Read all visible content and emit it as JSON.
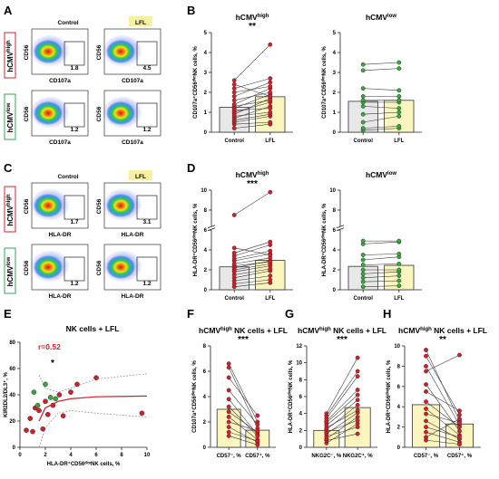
{
  "figure": {
    "panel_letters": [
      "A",
      "B",
      "C",
      "D",
      "E",
      "F",
      "G",
      "H"
    ],
    "colors": {
      "control_bar": "#e8e8e8",
      "lfl_bar": "#fbf6c0",
      "high_point": "#d0202a",
      "low_point": "#3aa53a",
      "gate_high_border": "#d9232a",
      "gate_low_border": "#2fa84f",
      "lfl_tag": "#f6f0a0",
      "r_text": "#d0202a"
    }
  },
  "flow": {
    "A": {
      "col_headers": [
        "Control",
        "LFL"
      ],
      "rows": [
        {
          "group": "hCMV",
          "sup": "high",
          "border": "red",
          "ylabel": "CD56",
          "xlabel": "CD107a",
          "values": [
            "1.8",
            "4.5"
          ]
        },
        {
          "group": "hCMV",
          "sup": "low",
          "border": "green",
          "ylabel": "CD56",
          "xlabel": "CD107a",
          "values": [
            "1.2",
            "1.2"
          ]
        }
      ]
    },
    "C": {
      "col_headers": [
        "Control",
        "LFL"
      ],
      "rows": [
        {
          "group": "hCMV",
          "sup": "high",
          "border": "red",
          "ylabel": "CD56",
          "xlabel": "HLA-DR",
          "values": [
            "1.7",
            "3.1"
          ]
        },
        {
          "group": "hCMV",
          "sup": "low",
          "border": "green",
          "ylabel": "CD56",
          "xlabel": "HLA-DR",
          "values": [
            "1.2",
            "1.2"
          ]
        }
      ]
    }
  },
  "chart_data": [
    {
      "panel": "B",
      "type": "bar",
      "title": "hCMV",
      "title_sup": "high",
      "ylabel": "CD107a⁺CD56ᵈⁱᵐNK cells, %",
      "categories": [
        "Control",
        "LFL"
      ],
      "ylim": [
        0,
        5
      ],
      "yticks": [
        0,
        1,
        2,
        3,
        4,
        5
      ],
      "bar_means": [
        1.25,
        1.78
      ],
      "pairs": [
        [
          0.2,
          0.4
        ],
        [
          0.4,
          0.5
        ],
        [
          0.5,
          0.8
        ],
        [
          0.6,
          0.9
        ],
        [
          0.7,
          1.3
        ],
        [
          0.8,
          1.0
        ],
        [
          0.9,
          1.7
        ],
        [
          1.0,
          1.5
        ],
        [
          1.1,
          1.2
        ],
        [
          1.2,
          1.9
        ],
        [
          1.3,
          1.6
        ],
        [
          1.4,
          2.2
        ],
        [
          1.6,
          2.0
        ],
        [
          1.8,
          2.5
        ],
        [
          2.0,
          2.3
        ],
        [
          2.2,
          2.7
        ],
        [
          2.4,
          1.8
        ],
        [
          2.6,
          4.4
        ]
      ],
      "point_color": "#d0202a",
      "significance": "**"
    },
    {
      "panel": "B",
      "type": "bar",
      "title": "hCMV",
      "title_sup": "low",
      "ylabel": "CD107a⁺CD56ᵈⁱᵐNK cells, %",
      "categories": [
        "Control",
        "LFL"
      ],
      "ylim": [
        0,
        5
      ],
      "yticks": [
        0,
        1,
        2,
        3,
        4,
        5
      ],
      "bar_means": [
        1.55,
        1.6
      ],
      "pairs": [
        [
          0.1,
          0.2
        ],
        [
          0.2,
          0.3
        ],
        [
          0.5,
          0.8
        ],
        [
          0.9,
          1.0
        ],
        [
          1.3,
          1.2
        ],
        [
          1.5,
          1.5
        ],
        [
          1.6,
          1.6
        ],
        [
          1.8,
          1.8
        ],
        [
          2.2,
          2.1
        ],
        [
          3.1,
          3.2
        ],
        [
          3.4,
          3.5
        ]
      ],
      "point_color": "#3aa53a",
      "significance": ""
    },
    {
      "panel": "D",
      "type": "bar",
      "title": "hCMV",
      "title_sup": "high",
      "ylabel": "HLA-DR⁺CD56ᵈⁱᵐNK cells, %",
      "categories": [
        "Control",
        "LFL"
      ],
      "ylim": [
        0,
        10
      ],
      "yticks": [
        0,
        2,
        4,
        6,
        8,
        10
      ],
      "axis_break": true,
      "bar_means": [
        2.3,
        2.95
      ],
      "pairs": [
        [
          0.3,
          0.7
        ],
        [
          0.6,
          1.0
        ],
        [
          0.9,
          1.4
        ],
        [
          1.2,
          1.9
        ],
        [
          1.5,
          2.1
        ],
        [
          1.8,
          2.4
        ],
        [
          2.0,
          2.6
        ],
        [
          2.2,
          2.9
        ],
        [
          2.4,
          2.8
        ],
        [
          2.6,
          3.2
        ],
        [
          2.9,
          3.6
        ],
        [
          3.1,
          3.9
        ],
        [
          3.4,
          4.5
        ],
        [
          3.7,
          4.8
        ],
        [
          4.2,
          3.5
        ],
        [
          7.5,
          9.8
        ]
      ],
      "point_color": "#d0202a",
      "significance": "***"
    },
    {
      "panel": "D",
      "type": "bar",
      "title": "hCMV",
      "title_sup": "low",
      "ylabel": "HLA-DR⁺CD56ᵈⁱᵐNK cells, %",
      "categories": [
        "Control",
        "LFL"
      ],
      "ylim": [
        0,
        10
      ],
      "yticks": [
        0,
        2,
        4,
        6,
        8,
        10
      ],
      "axis_break": true,
      "bar_means": [
        2.35,
        2.45
      ],
      "pairs": [
        [
          0.3,
          0.4
        ],
        [
          0.8,
          0.9
        ],
        [
          1.2,
          1.4
        ],
        [
          1.6,
          1.8
        ],
        [
          2.0,
          2.0
        ],
        [
          2.5,
          2.6
        ],
        [
          3.0,
          3.3
        ],
        [
          3.5,
          3.6
        ],
        [
          4.6,
          4.8
        ],
        [
          4.9,
          4.9
        ]
      ],
      "point_color": "#3aa53a",
      "significance": ""
    },
    {
      "panel": "E",
      "type": "scatter",
      "title": "NK cells + LFL",
      "xlabel": "HLA-DR⁺CD56ᵈⁱᵐNK cells, %",
      "ylabel": "KIR2DL2/DL3⁺, %",
      "xlim": [
        0,
        10
      ],
      "ylim": [
        0,
        80
      ],
      "xticks": [
        0,
        2,
        4,
        6,
        8,
        10
      ],
      "yticks": [
        0,
        20,
        40,
        60,
        80
      ],
      "annotation": "r=0.52",
      "significance": "*",
      "points_high": [
        [
          0.5,
          13
        ],
        [
          0.8,
          22
        ],
        [
          1.0,
          12
        ],
        [
          1.2,
          30
        ],
        [
          1.5,
          28
        ],
        [
          1.8,
          14
        ],
        [
          2.0,
          35
        ],
        [
          2.2,
          25
        ],
        [
          2.6,
          32
        ],
        [
          3.1,
          40
        ],
        [
          3.4,
          24
        ],
        [
          4.0,
          42
        ],
        [
          4.5,
          48
        ],
        [
          6.0,
          53
        ],
        [
          9.6,
          26
        ]
      ],
      "points_low": [
        [
          1.1,
          42
        ],
        [
          1.4,
          32
        ],
        [
          2.0,
          48
        ],
        [
          2.4,
          38
        ],
        [
          2.8,
          37
        ]
      ],
      "fit_curve": [
        [
          1.5,
          20
        ],
        [
          2,
          30
        ],
        [
          3,
          35
        ],
        [
          4,
          37
        ],
        [
          6,
          38.5
        ],
        [
          10,
          39
        ]
      ],
      "ci_upper": [
        [
          1.5,
          55
        ],
        [
          2,
          45
        ],
        [
          3,
          42
        ],
        [
          4,
          45
        ],
        [
          6,
          52
        ],
        [
          10,
          56
        ]
      ],
      "ci_lower": [
        [
          1.5,
          0
        ],
        [
          2,
          15
        ],
        [
          3,
          26
        ],
        [
          4,
          28
        ],
        [
          6,
          26
        ],
        [
          10,
          23
        ]
      ]
    },
    {
      "panel": "F",
      "type": "bar",
      "title": "hCMV",
      "title_sup": "high",
      "title_rest": " NK cells + LFL",
      "ylabel": "CD107a⁺CD56ᵈⁱᵐNK cells, %",
      "categories": [
        "CD57⁻, %",
        "CD57⁺, %"
      ],
      "ylim": [
        0,
        8
      ],
      "yticks": [
        0,
        2,
        4,
        6,
        8
      ],
      "bar_means": [
        3.0,
        1.35
      ],
      "pairs": [
        [
          6.6,
          2.0
        ],
        [
          6.3,
          1.5
        ],
        [
          5.5,
          2.5
        ],
        [
          4.5,
          1.8
        ],
        [
          3.8,
          1.0
        ],
        [
          3.2,
          0.9
        ],
        [
          2.8,
          1.2
        ],
        [
          2.4,
          0.6
        ],
        [
          2.0,
          1.3
        ],
        [
          1.6,
          0.4
        ],
        [
          1.2,
          0.5
        ],
        [
          0.9,
          0.2
        ]
      ],
      "point_color": "#d0202a",
      "significance": "***"
    },
    {
      "panel": "G",
      "type": "bar",
      "title": "hCMV",
      "title_sup": "high",
      "title_rest": " NK cells + LFL",
      "ylabel": "HLA-DR⁺CD56ᵈⁱᵐNK cells, %",
      "categories": [
        "NKG2C⁻, %",
        "NKG2C⁺, %"
      ],
      "ylim": [
        0,
        12
      ],
      "yticks": [
        0,
        2,
        4,
        6,
        8,
        10,
        12
      ],
      "bar_means": [
        2.0,
        4.7
      ],
      "pairs": [
        [
          0.5,
          2.8
        ],
        [
          0.8,
          1.6
        ],
        [
          1.0,
          3.6
        ],
        [
          1.3,
          2.4
        ],
        [
          1.6,
          4.1
        ],
        [
          1.8,
          3.2
        ],
        [
          2.1,
          5.0
        ],
        [
          2.3,
          4.4
        ],
        [
          2.6,
          5.6
        ],
        [
          2.9,
          6.2
        ],
        [
          3.1,
          6.8
        ],
        [
          3.4,
          8.4
        ],
        [
          3.7,
          9.0
        ],
        [
          4.0,
          10.6
        ]
      ],
      "point_color": "#d0202a",
      "significance": "***"
    },
    {
      "panel": "H",
      "type": "bar",
      "title": "hCMV",
      "title_sup": "high",
      "title_rest": " NK cells + LFL",
      "ylabel": "HLA-DR⁺CD56ᵈⁱᵐNK cells, %",
      "categories": [
        "CD57⁻, %",
        "CD57⁺, %"
      ],
      "ylim": [
        0,
        10
      ],
      "yticks": [
        0,
        2,
        4,
        6,
        8,
        10
      ],
      "bar_means": [
        4.2,
        2.3
      ],
      "pairs": [
        [
          9.6,
          2.6
        ],
        [
          9.0,
          3.2
        ],
        [
          8.0,
          2.2
        ],
        [
          7.5,
          9.1
        ],
        [
          6.2,
          1.6
        ],
        [
          5.5,
          3.6
        ],
        [
          4.5,
          2.0
        ],
        [
          3.8,
          1.2
        ],
        [
          3.3,
          2.4
        ],
        [
          2.6,
          0.8
        ],
        [
          2.0,
          1.0
        ],
        [
          1.5,
          0.5
        ],
        [
          1.0,
          2.8
        ],
        [
          0.7,
          0.3
        ]
      ],
      "point_color": "#d0202a",
      "significance": "**"
    }
  ]
}
